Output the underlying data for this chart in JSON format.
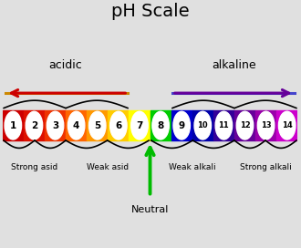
{
  "title": "pH Scale",
  "background_color": "#e0e0e0",
  "ph_colors": [
    "#cc0000",
    "#dd1100",
    "#ee3300",
    "#ff6600",
    "#ff9900",
    "#ffcc00",
    "#ffff00",
    "#00cc00",
    "#0000cc",
    "#0000aa",
    "#330099",
    "#660099",
    "#9900aa",
    "#cc00cc"
  ],
  "ph_labels": [
    "1",
    "2",
    "3",
    "4",
    "5",
    "6",
    "7",
    "8",
    "9",
    "10",
    "11",
    "12",
    "13",
    "14"
  ],
  "acidic_label": "acidic",
  "alkaline_label": "alkaline",
  "neutral_label": "Neutral",
  "strong_acid_label": "Strong asid",
  "weak_acid_label": "Weak asid",
  "weak_alkali_label": "Weak alkali",
  "strong_alkali_label": "Strong alkali",
  "acid_arrow_color": "#cc0000",
  "alkali_arrow_color": "#660099",
  "neutral_arrow_color": "#00bb00",
  "acid_line_color": "#cc8800",
  "alkali_line_color": "#4444cc"
}
